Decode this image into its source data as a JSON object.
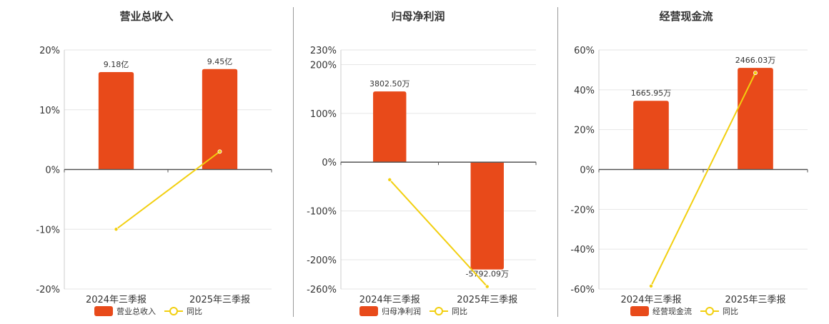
{
  "colors": {
    "bar": "#e84a1a",
    "line": "#f2cf0f",
    "grid": "#e6e6e6",
    "axis": "#555555"
  },
  "chart_data": [
    {
      "type": "bar",
      "title": "营业总收入",
      "categories": [
        "2024年三季报",
        "2025年三季报"
      ],
      "series": [
        {
          "name": "营业总收入",
          "kind": "bar",
          "values": [
            16.3,
            16.8
          ],
          "labels": [
            "9.18亿",
            "9.45亿"
          ]
        },
        {
          "name": "同比",
          "kind": "line",
          "values": [
            -10.0,
            3.0
          ]
        }
      ],
      "ylim": [
        -20,
        20
      ],
      "yticks": [
        20,
        10,
        0,
        -10,
        -20
      ],
      "ytick_labels": [
        "20%",
        "10%",
        "0%",
        "-10%",
        "-20%"
      ],
      "grid": true,
      "legend": "bottom"
    },
    {
      "type": "bar",
      "title": "归母净利润",
      "categories": [
        "2024年三季报",
        "2025年三季报"
      ],
      "series": [
        {
          "name": "归母净利润",
          "kind": "bar",
          "values": [
            145,
            -220
          ],
          "labels": [
            "3802.50万",
            "-5792.09万"
          ]
        },
        {
          "name": "同比",
          "kind": "line",
          "values": [
            -36,
            -255
          ]
        }
      ],
      "ylim": [
        -260,
        230
      ],
      "yticks": [
        230,
        200,
        100,
        0,
        -100,
        -200,
        -260
      ],
      "ytick_labels": [
        "230%",
        "200%",
        "100%",
        "0%",
        "-100%",
        "-200%",
        "-260%"
      ],
      "grid": true,
      "legend": "bottom"
    },
    {
      "type": "bar",
      "title": "经营现金流",
      "categories": [
        "2024年三季报",
        "2025年三季报"
      ],
      "series": [
        {
          "name": "经营现金流",
          "kind": "bar",
          "values": [
            34.5,
            51.0
          ],
          "labels": [
            "1665.95万",
            "2466.03万"
          ]
        },
        {
          "name": "同比",
          "kind": "line",
          "values": [
            -58.5,
            48.5
          ]
        }
      ],
      "ylim": [
        -60,
        60
      ],
      "yticks": [
        60,
        40,
        20,
        0,
        -20,
        -40,
        -60
      ],
      "ytick_labels": [
        "60%",
        "40%",
        "20%",
        "0%",
        "-20%",
        "-40%",
        "-60%"
      ],
      "grid": true,
      "legend": "bottom"
    }
  ]
}
